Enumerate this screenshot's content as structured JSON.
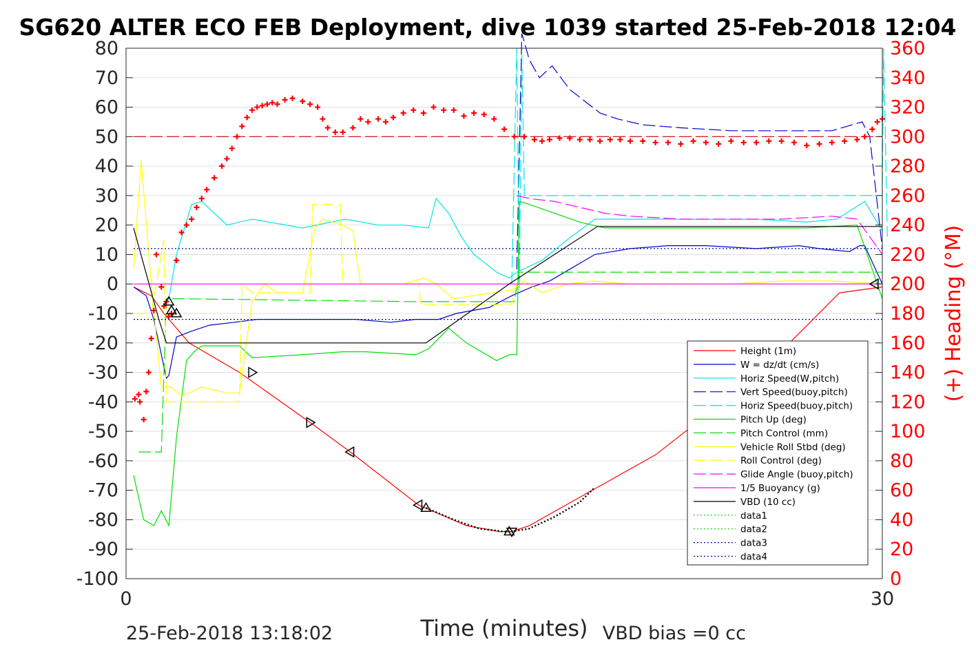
{
  "chart_data": {
    "type": "line",
    "title": "SG620 ALTER ECO FEB Deployment, dive 1039 started 25-Feb-2018 12:04",
    "xlabel": "Time (minutes)",
    "ylabel_right": "(+) Heading (°M)",
    "xlim": [
      0,
      30
    ],
    "ylim": [
      -100,
      80
    ],
    "ylim_right": [
      0,
      360
    ],
    "x_ticks": [
      "0",
      "30"
    ],
    "y_ticks": [
      "80",
      "70",
      "60",
      "50",
      "40",
      "30",
      "20",
      "10",
      "0",
      "-10",
      "-20",
      "-30",
      "-40",
      "-50",
      "-60",
      "-70",
      "-80",
      "-90",
      "-100"
    ],
    "y_ticks_right": [
      "360",
      "340",
      "320",
      "300",
      "280",
      "260",
      "240",
      "220",
      "200",
      "180",
      "160",
      "140",
      "120",
      "100",
      "80",
      "60",
      "40",
      "20",
      "0"
    ],
    "footer_left": "25-Feb-2018 13:18:02",
    "footer_right": "VBD bias =0 cc",
    "grid": "horizontal",
    "legend_position": "lower-right",
    "colors": {
      "red": "#ff0000",
      "blue": "#0000cc",
      "cyan": "#00e5e5",
      "green": "#00dd00",
      "yellow": "#ffff00",
      "magenta": "#ff00ff",
      "black": "#000000"
    },
    "series": [
      {
        "name": "Height (1m)",
        "color": "#ff0000",
        "style": "solid",
        "x": [
          0.3,
          1.0,
          1.5,
          2.5,
          4.5,
          7.3,
          8.9,
          11.6,
          13.5,
          14.8,
          15.3,
          16.0,
          18.7,
          21.0,
          24.0,
          26.2,
          28.3,
          30.0
        ],
        "y": [
          -1,
          -4,
          -10,
          -20,
          -30,
          -47,
          -57,
          -75,
          -82,
          -84,
          -84,
          -82,
          -69,
          -58,
          -38,
          -21,
          -3,
          -1
        ]
      },
      {
        "name": "W = dz/dt (cm/s)",
        "color": "#0000cc",
        "style": "solid",
        "x": [
          0.3,
          0.8,
          1.1,
          1.6,
          1.7,
          2.0,
          2.6,
          3.3,
          4.3,
          5.2,
          6.5,
          8.0,
          9.1,
          10.5,
          11.5,
          12.4,
          13.1,
          14.4,
          15.3,
          16.1,
          16.8,
          17.6,
          18.6,
          20,
          21.5,
          23,
          25,
          26.7,
          27.5,
          28.7,
          29.1,
          29.3,
          30
        ],
        "y": [
          -1,
          -4,
          -12,
          -32,
          -31,
          -18,
          -16,
          -14,
          -13,
          -12,
          -12,
          -12,
          -12,
          -13,
          -12,
          -12,
          -10,
          -8,
          -4,
          -1,
          1,
          5,
          10,
          12,
          13,
          13,
          12,
          13,
          12,
          11,
          13,
          13,
          0
        ]
      },
      {
        "name": "Horiz Speed(W,pitch)",
        "color": "#00e5e5",
        "style": "solid",
        "x": [
          1.5,
          1.7,
          2.0,
          2.6,
          3.0,
          4.0,
          5.0,
          7.0,
          8.7,
          10.0,
          11.0,
          12.0,
          12.3,
          12.8,
          13.3,
          13.8,
          14.7,
          15.2,
          15.5,
          16.5,
          17.5,
          18.6,
          19.5,
          21,
          23,
          25,
          27,
          28.2,
          29.3,
          30
        ],
        "y": [
          -8,
          -5,
          10,
          27,
          28,
          20,
          22,
          19,
          22,
          20,
          20,
          19,
          29,
          24,
          16,
          10,
          4,
          2,
          4,
          8,
          15,
          22,
          22,
          22,
          22,
          22,
          21,
          22,
          28,
          18
        ]
      },
      {
        "name": "Vert Speed(buoy,pitch)",
        "color": "#0000cc",
        "style": "dashed",
        "x": [
          15.5,
          15.7,
          16.0,
          16.4,
          16.9,
          17.6,
          18.2,
          18.8,
          19.5,
          20.5,
          22,
          24,
          26,
          28,
          28.8,
          29.2,
          29.5,
          30
        ],
        "y": [
          5,
          85,
          76,
          70,
          74,
          66,
          62,
          58,
          56,
          54,
          53,
          52,
          52,
          52,
          54,
          55,
          50,
          12
        ]
      },
      {
        "name": "Horiz Speed(buoy,pitch)",
        "color": "#00e5e5",
        "style": "dashed",
        "x": [
          15.3,
          15.5,
          15.6,
          15.7,
          15.8,
          30.0,
          30.05,
          30.2
        ],
        "y": [
          0,
          80,
          -2,
          78,
          30,
          30,
          80,
          16
        ]
      },
      {
        "name": "Pitch Up (deg)",
        "color": "#00dd00",
        "style": "solid",
        "x": [
          0.3,
          0.7,
          1.1,
          1.4,
          1.7,
          2.0,
          2.4,
          2.7,
          3.0,
          4.0,
          4.5,
          5.0,
          7.0,
          8.6,
          9.5,
          11.5,
          12.0,
          12.8,
          13.5,
          14.7,
          15.2,
          15.5,
          15.6,
          16.0,
          17.0,
          18.0,
          19.0,
          21,
          23,
          25,
          27,
          29.0,
          30.0
        ],
        "y": [
          -65,
          -80,
          -82,
          -77,
          -82,
          -52,
          -26,
          -23,
          -21,
          -21,
          -21,
          -25,
          -24,
          -23,
          -23,
          -24,
          -22,
          -15,
          -20,
          -26,
          -24,
          -24,
          28,
          27,
          24,
          21,
          19,
          19,
          19,
          19,
          19,
          20,
          -5
        ]
      },
      {
        "name": "Pitch Control (mm)",
        "color": "#00dd00",
        "style": "dashed",
        "x": [
          0.5,
          1.4,
          1.6,
          2.0,
          11.5,
          15.4,
          15.6,
          30.0
        ],
        "y": [
          -57,
          -57,
          -5,
          -5,
          -6,
          -6,
          4,
          4
        ]
      },
      {
        "name": "Vehicle Roll Stbd (deg)",
        "color": "#ffff00",
        "style": "solid",
        "x": [
          0.3,
          0.6,
          1.0,
          1.4,
          1.8,
          2.2,
          2.5,
          3.0,
          4.0,
          4.5,
          5.0,
          5.5,
          6.0,
          7.0,
          7.5,
          7.8,
          8.6,
          9.0,
          9.3,
          10.0,
          11.0,
          11.8,
          12.3,
          13.0,
          14.5,
          15.3,
          15.5,
          15.8,
          16.5,
          17.5,
          18.5,
          20,
          22,
          24,
          26,
          28,
          30
        ],
        "y": [
          5,
          42,
          0,
          -35,
          -35,
          -38,
          -37,
          -35,
          -37,
          -37,
          -6,
          0,
          -3,
          -3,
          19,
          22,
          20,
          18,
          0,
          0,
          0,
          2,
          0,
          -5,
          -3,
          -2,
          -1,
          1,
          -3,
          0,
          1,
          0,
          0,
          0,
          1,
          1,
          0
        ]
      },
      {
        "name": "Roll Control (deg)",
        "color": "#ffff00",
        "style": "dashed",
        "x": [
          0.4,
          1.0,
          1.5,
          1.6,
          2.5,
          4.5,
          4.6,
          5.0,
          7.0,
          7.3,
          7.4,
          8.5,
          8.6,
          11.6,
          11.7,
          15.3,
          15.5,
          30.0
        ],
        "y": [
          -10,
          -10,
          15,
          -40,
          -40,
          -40,
          0,
          -3,
          -3,
          -3,
          27,
          27,
          0,
          0,
          -7,
          -7,
          0,
          0
        ]
      },
      {
        "name": "Glide Angle (buoy,pitch)",
        "color": "#ff00ff",
        "style": "dashed",
        "x": [
          15.5,
          16.0,
          17.0,
          18.0,
          19.0,
          20,
          22,
          24,
          26,
          28,
          29,
          30.0
        ],
        "y": [
          30,
          29,
          28,
          26,
          24,
          23,
          22,
          22,
          22,
          23,
          22,
          10
        ]
      },
      {
        "name": "1/5 Buoyancy (g)",
        "color": "#ff00ff",
        "style": "solid",
        "x": [
          0.3,
          30.0
        ],
        "y": [
          0,
          0
        ]
      },
      {
        "name": "VBD (10 cc)",
        "color": "#000000",
        "style": "solid",
        "x": [
          0.3,
          1.3,
          1.6,
          11.9,
          15.2,
          18.7,
          30.0
        ],
        "y": [
          19,
          -12,
          -20,
          -20,
          0,
          19.5,
          19.5
        ]
      },
      {
        "name": "data1",
        "color": "#00cc00",
        "style": "dotted",
        "x": [],
        "y": []
      },
      {
        "name": "data2",
        "color": "#00cc00",
        "style": "dotted",
        "x": [],
        "y": []
      },
      {
        "name": "data3",
        "color": "#000099",
        "style": "dotted",
        "x": [
          0.3,
          30.0
        ],
        "y": [
          12,
          12
        ]
      },
      {
        "name": "data4",
        "color": "#000099",
        "style": "dotted",
        "x": [
          0.3,
          30.0
        ],
        "y": [
          -12,
          -12
        ]
      },
      {
        "name": "heading_reference",
        "color": "#cc0000",
        "style": "dashed",
        "x": [
          0.3,
          30.0
        ],
        "y": [
          300,
          300
        ]
      },
      {
        "name": "heading",
        "color": "#ff0000",
        "style": "plus",
        "x": [
          0.35,
          0.5,
          0.55,
          0.7,
          0.8,
          0.9,
          1.0,
          1.1,
          1.2,
          1.4,
          1.5,
          1.6,
          1.7,
          1.8,
          2.0,
          2.2,
          2.4,
          2.6,
          2.8,
          3.0,
          3.2,
          3.5,
          3.8,
          4.0,
          4.2,
          4.4,
          4.6,
          4.8,
          5.0,
          5.2,
          5.4,
          5.6,
          5.8,
          6.0,
          6.3,
          6.6,
          7.0,
          7.3,
          7.6,
          7.8,
          8.0,
          8.3,
          8.6,
          9.0,
          9.3,
          9.6,
          10.0,
          10.3,
          10.6,
          11.0,
          11.4,
          11.8,
          12.2,
          12.6,
          13.0,
          13.4,
          13.8,
          14.2,
          14.6,
          15.0,
          15.4,
          15.8,
          16.2,
          16.5,
          16.8,
          17.2,
          17.6,
          18.0,
          18.4,
          18.8,
          19.2,
          19.6,
          20.0,
          20.5,
          21,
          21.5,
          22,
          22.5,
          23,
          23.5,
          24,
          24.5,
          25,
          25.5,
          26,
          26.5,
          27,
          27.5,
          28,
          28.5,
          29,
          29.3,
          29.6,
          29.8,
          30.0
        ],
        "y": [
          122,
          125,
          120,
          108,
          127,
          140,
          163,
          182,
          220,
          198,
          185,
          188,
          178,
          180,
          216,
          235,
          240,
          244,
          252,
          258,
          264,
          272,
          280,
          285,
          292,
          300,
          307,
          313,
          318,
          320,
          321,
          322,
          323,
          322,
          325,
          326,
          324,
          322,
          320,
          312,
          306,
          303,
          303,
          306,
          312,
          310,
          312,
          310,
          313,
          316,
          318,
          316,
          320,
          318,
          318,
          314,
          316,
          315,
          312,
          305,
          300,
          300,
          298,
          297,
          298,
          299,
          299,
          298,
          298,
          297,
          298,
          298,
          297,
          297,
          296,
          296,
          295,
          297,
          296,
          295,
          297,
          296,
          296,
          297,
          297,
          296,
          294,
          295,
          296,
          297,
          298,
          300,
          305,
          310,
          312
        ]
      }
    ],
    "markers": [
      {
        "x": 1.7,
        "y": -6,
        "direction": "up"
      },
      {
        "x": 1.8,
        "y": -9,
        "direction": "up"
      },
      {
        "x": 2.0,
        "y": -10,
        "direction": "up"
      },
      {
        "x": 5.0,
        "y": -30,
        "direction": "right"
      },
      {
        "x": 7.3,
        "y": -47,
        "direction": "right"
      },
      {
        "x": 8.9,
        "y": -57,
        "direction": "left"
      },
      {
        "x": 11.6,
        "y": -75,
        "direction": "left"
      },
      {
        "x": 11.9,
        "y": -76,
        "direction": "up"
      },
      {
        "x": 15.2,
        "y": -84,
        "direction": "up"
      },
      {
        "x": 15.3,
        "y": -84,
        "direction": "down"
      },
      {
        "x": 29.7,
        "y": 0,
        "direction": "left"
      }
    ],
    "dotted_segment": {
      "x": [
        11.9,
        13.0,
        14.0,
        15.0,
        15.3,
        16.0,
        17.0,
        18.0,
        18.6
      ],
      "y": [
        -76,
        -80,
        -83,
        -84,
        -84,
        -83,
        -79,
        -74,
        -69
      ]
    }
  }
}
